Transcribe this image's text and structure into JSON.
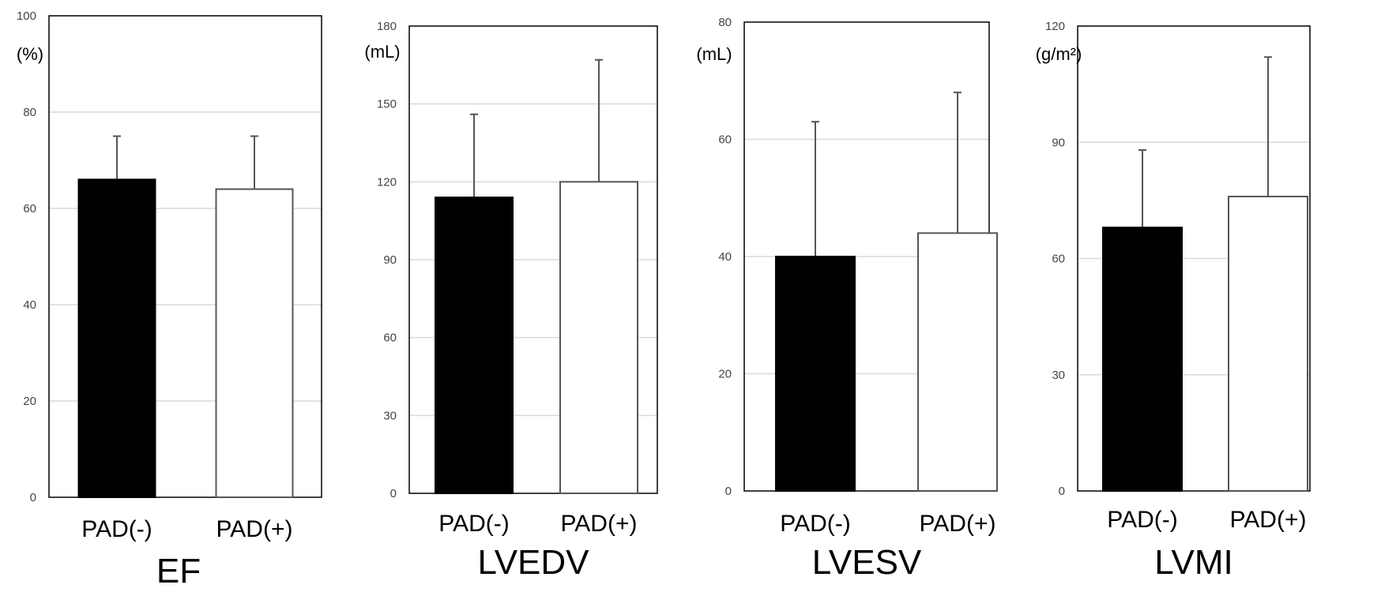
{
  "chart_data": [
    {
      "type": "bar",
      "title": "EF",
      "ylabel": "(%)",
      "categories": [
        "PAD(-)",
        "PAD(+)"
      ],
      "values": [
        66,
        64
      ],
      "errors": [
        9,
        11
      ],
      "ylim": [
        0,
        100
      ],
      "yticks": [
        "0",
        "20",
        "40",
        "60",
        "80",
        "100"
      ],
      "grid": true,
      "bar_colors": [
        "#000000",
        "#ffffff"
      ]
    },
    {
      "type": "bar",
      "title": "LVEDV",
      "ylabel": "(mL)",
      "categories": [
        "PAD(-)",
        "PAD(+)"
      ],
      "values": [
        114,
        120
      ],
      "errors": [
        32,
        47
      ],
      "ylim": [
        0,
        180
      ],
      "yticks": [
        "0",
        "30",
        "60",
        "90",
        "120",
        "150",
        "180"
      ],
      "grid": true,
      "bar_colors": [
        "#000000",
        "#ffffff"
      ]
    },
    {
      "type": "bar",
      "title": "LVESV",
      "ylabel": "(mL)",
      "categories": [
        "PAD(-)",
        "PAD(+)"
      ],
      "values": [
        40,
        44
      ],
      "errors": [
        23,
        24
      ],
      "ylim": [
        0,
        80
      ],
      "yticks": [
        "0",
        "20",
        "40",
        "60",
        "80"
      ],
      "grid": true,
      "bar_colors": [
        "#000000",
        "#ffffff"
      ]
    },
    {
      "type": "bar",
      "title": "LVMI",
      "ylabel": "(g/m²)",
      "categories": [
        "PAD(-)",
        "PAD(+)"
      ],
      "values": [
        68,
        76
      ],
      "errors": [
        20,
        36
      ],
      "ylim": [
        0,
        120
      ],
      "yticks": [
        "0",
        "30",
        "60",
        "90",
        "120"
      ],
      "grid": true,
      "bar_colors": [
        "#000000",
        "#ffffff"
      ]
    }
  ]
}
